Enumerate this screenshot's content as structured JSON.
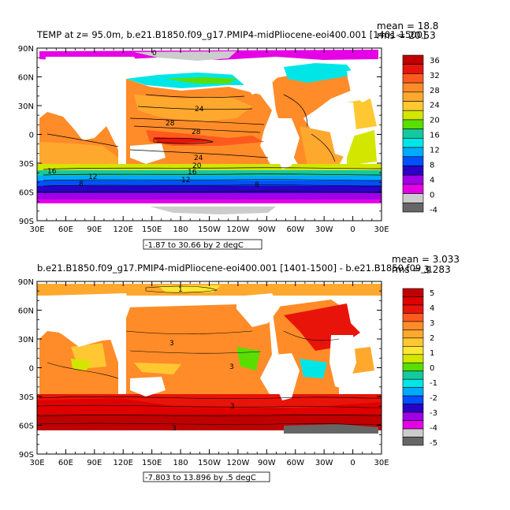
{
  "panels": [
    {
      "title": "TEMP at z=  95.0m, b.e21.B1850.f09_g17.PMIP4-midPliocene-eoi400.001 [1401-1500]",
      "mean_label": "mean = 18.8",
      "rms_label": "rms = 20.53",
      "range_label": "-1.87 to 30.66 by 2 degC",
      "colorbar_ticks": [
        "36",
        "32",
        "28",
        "24",
        "20",
        "16",
        "12",
        "8",
        "4",
        "0",
        "-4"
      ],
      "colorbar_colors": [
        "#c00000",
        "#e8140a",
        "#ff5a1e",
        "#ff8c28",
        "#ffa82e",
        "#ffc832",
        "#d2e600",
        "#5ade00",
        "#14c8a0",
        "#00e6e6",
        "#00aaff",
        "#0050ff",
        "#2800c8",
        "#a000e6",
        "#e600e6",
        "#cccccc",
        "#666666"
      ],
      "contour_labels": [
        "0",
        "24",
        "28",
        "28",
        "24",
        "20",
        "16",
        "12",
        "8",
        "16",
        "12",
        "8"
      ]
    },
    {
      "title": "b.e21.B1850.f09_g17.PMIP4-midPliocene-eoi400.001 [1401-1500] - b.e21.B1850.f09_g",
      "mean_label": "mean = 3.033",
      "rms_label": "rms = 3.283",
      "range_label": "-7.803 to 13.896 by .5 degC",
      "colorbar_ticks": [
        "5",
        "4",
        "3",
        "2",
        "1",
        "0",
        "-1",
        "-2",
        "-3",
        "-4",
        "-5"
      ],
      "colorbar_colors": [
        "#c00000",
        "#e00000",
        "#e8140a",
        "#ff5a1e",
        "#ff8c28",
        "#ffa82e",
        "#ffc832",
        "#ffe632",
        "#d2e600",
        "#5ade00",
        "#14c8a0",
        "#00e6e6",
        "#00aaff",
        "#0050ff",
        "#2800c8",
        "#a000e6",
        "#e600e6",
        "#cccccc",
        "#666666"
      ],
      "contour_labels": [
        "1",
        "3",
        "3",
        "3",
        "3"
      ]
    }
  ],
  "lat_labels": [
    "90N",
    "60N",
    "30N",
    "0",
    "30S",
    "60S",
    "90S"
  ],
  "lon_labels": [
    "30E",
    "60E",
    "90E",
    "120E",
    "150E",
    "180",
    "150W",
    "120W",
    "90W",
    "60W",
    "30W",
    "0",
    "30E"
  ]
}
